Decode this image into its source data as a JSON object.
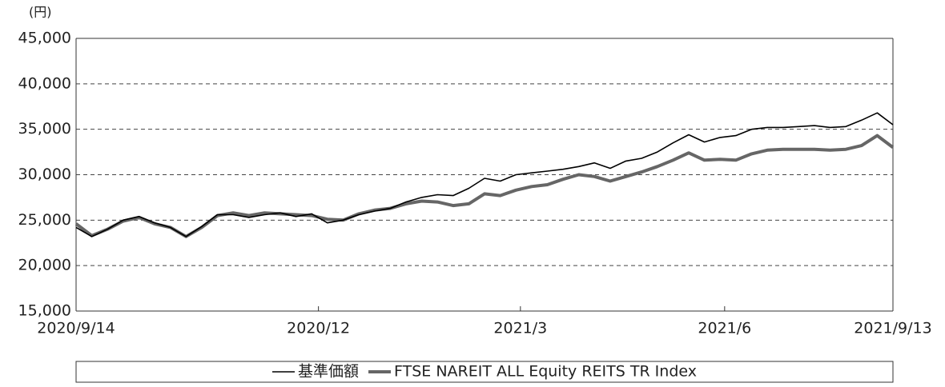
{
  "chart_data": {
    "type": "line",
    "y_label": "(円)",
    "x": [
      "2020-09-14",
      "2020-09-21",
      "2020-09-28",
      "2020-10-05",
      "2020-10-12",
      "2020-10-19",
      "2020-10-26",
      "2020-11-02",
      "2020-11-09",
      "2020-11-16",
      "2020-11-23",
      "2020-11-30",
      "2020-12-07",
      "2020-12-14",
      "2020-12-21",
      "2020-12-28",
      "2021-01-04",
      "2021-01-11",
      "2021-01-18",
      "2021-01-25",
      "2021-02-01",
      "2021-02-08",
      "2021-02-15",
      "2021-02-22",
      "2021-03-01",
      "2021-03-08",
      "2021-03-15",
      "2021-03-22",
      "2021-03-29",
      "2021-04-05",
      "2021-04-12",
      "2021-04-19",
      "2021-04-26",
      "2021-05-03",
      "2021-05-10",
      "2021-05-17",
      "2021-05-24",
      "2021-05-31",
      "2021-06-07",
      "2021-06-14",
      "2021-06-21",
      "2021-06-28",
      "2021-07-05",
      "2021-07-12",
      "2021-07-19",
      "2021-07-26",
      "2021-08-02",
      "2021-08-09",
      "2021-08-16",
      "2021-08-23",
      "2021-08-30",
      "2021-09-06",
      "2021-09-13"
    ],
    "series": [
      {
        "name": "基準価額",
        "color": "#000000",
        "width": 1.6,
        "values": [
          24200,
          23200,
          24000,
          25000,
          25400,
          24700,
          24200,
          23200,
          24300,
          25600,
          25600,
          25300,
          25600,
          25800,
          25400,
          25700,
          24700,
          25000,
          25600,
          26000,
          26300,
          27000,
          27500,
          27800,
          27700,
          28500,
          29600,
          29300,
          30000,
          30200,
          30400,
          30600,
          30900,
          31300,
          30700,
          31500,
          31800,
          32500,
          33500,
          34400,
          33600,
          34100,
          34300,
          35000,
          35200,
          35200,
          35300,
          35400,
          35200,
          35300,
          36000,
          36800,
          35500
        ]
      },
      {
        "name": "FTSE NAREIT ALL Equity REITS TR Index",
        "color": "#666666",
        "width": 4,
        "values": [
          24600,
          23300,
          24000,
          24900,
          25300,
          24600,
          24200,
          23200,
          24200,
          25500,
          25800,
          25500,
          25800,
          25700,
          25600,
          25500,
          25100,
          25000,
          25700,
          26100,
          26300,
          26800,
          27100,
          27000,
          26600,
          26800,
          27900,
          27700,
          28300,
          28700,
          28900,
          29500,
          30000,
          29800,
          29300,
          29800,
          30300,
          30900,
          31600,
          32400,
          31600,
          31700,
          31600,
          32300,
          32700,
          32800,
          32800,
          32800,
          32700,
          32800,
          33200,
          34300,
          33000
        ]
      }
    ],
    "xlim": [
      "2020-09-14",
      "2021-09-13"
    ],
    "xticks": [
      {
        "value": "2020-09-14",
        "label": "2020/9/14"
      },
      {
        "value": "2020-12-31",
        "label": "2020/12"
      },
      {
        "value": "2021-03-31",
        "label": "2021/3"
      },
      {
        "value": "2021-06-30",
        "label": "2021/6"
      },
      {
        "value": "2021-09-13",
        "label": "2021/9/13"
      }
    ],
    "ylim": [
      15000,
      45000
    ],
    "yticks": [
      {
        "value": 15000,
        "label": "15,000"
      },
      {
        "value": 20000,
        "label": "20,000"
      },
      {
        "value": 25000,
        "label": "25,000"
      },
      {
        "value": 30000,
        "label": "30,000"
      },
      {
        "value": 35000,
        "label": "35,000"
      },
      {
        "value": 40000,
        "label": "40,000"
      },
      {
        "value": 45000,
        "label": "45,000"
      }
    ],
    "grid": true
  }
}
